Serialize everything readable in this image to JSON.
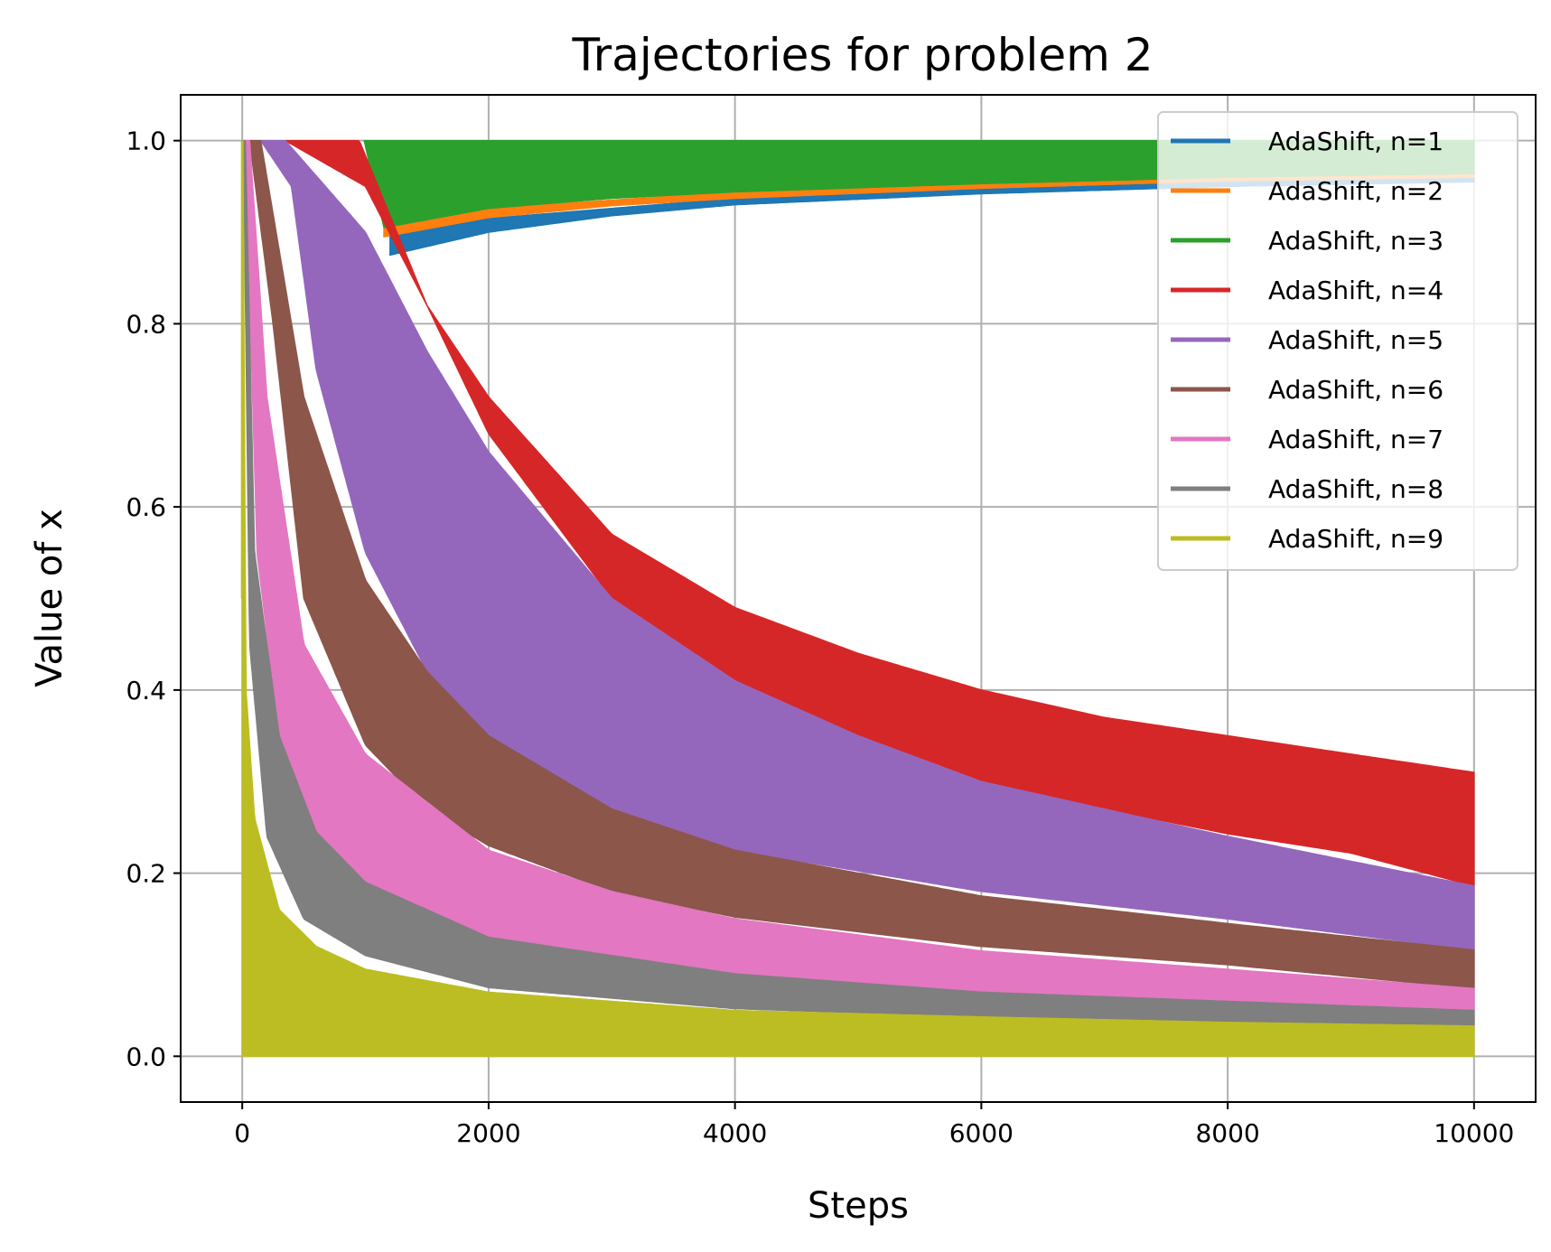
{
  "chart_data": {
    "type": "area",
    "title": "Trajectories for problem 2",
    "xlabel": "Steps",
    "ylabel": "Value of x",
    "xlim": [
      -500,
      10500
    ],
    "ylim": [
      -0.05,
      1.05
    ],
    "xticks": [
      0,
      2000,
      4000,
      6000,
      8000,
      10000
    ],
    "yticks": [
      0.0,
      0.2,
      0.4,
      0.6,
      0.8,
      1.0
    ],
    "xtick_labels": [
      "0",
      "2000",
      "4000",
      "6000",
      "8000",
      "10000"
    ],
    "ytick_labels": [
      "0.0",
      "0.2",
      "0.4",
      "0.6",
      "0.8",
      "1.0"
    ],
    "grid": true,
    "legend_position": "upper right",
    "series": [
      {
        "name": "AdaShift, n=1",
        "color": "#1f77b4",
        "start_step": 1200,
        "envelope_low": [
          [
            1200,
            0.875
          ],
          [
            2000,
            0.9
          ],
          [
            3000,
            0.918
          ],
          [
            4000,
            0.93
          ],
          [
            6000,
            0.942
          ],
          [
            8000,
            0.95
          ],
          [
            10000,
            0.955
          ]
        ],
        "envelope_high": [
          [
            1200,
            0.895
          ],
          [
            2000,
            0.915
          ],
          [
            4000,
            0.937
          ],
          [
            6000,
            0.948
          ],
          [
            8000,
            0.955
          ],
          [
            10000,
            0.96
          ]
        ]
      },
      {
        "name": "AdaShift, n=2",
        "color": "#ff7f0e",
        "start_step": 1150,
        "envelope_low": [
          [
            1150,
            0.895
          ],
          [
            2000,
            0.916
          ],
          [
            3000,
            0.929
          ],
          [
            4000,
            0.937
          ],
          [
            6000,
            0.948
          ],
          [
            8000,
            0.956
          ],
          [
            10000,
            0.96
          ]
        ],
        "envelope_high": [
          [
            1150,
            0.91
          ],
          [
            2000,
            0.926
          ],
          [
            4000,
            0.944
          ],
          [
            6000,
            0.953
          ],
          [
            8000,
            0.96
          ],
          [
            10000,
            0.964
          ]
        ]
      },
      {
        "name": "AdaShift, n=3",
        "color": "#2ca02c",
        "start_step": 990,
        "envelope_low": [
          [
            990,
            1.0
          ],
          [
            1150,
            0.905
          ],
          [
            2000,
            0.926
          ],
          [
            3000,
            0.937
          ],
          [
            4000,
            0.944
          ],
          [
            6000,
            0.953
          ],
          [
            8000,
            0.96
          ],
          [
            10000,
            0.964
          ]
        ],
        "envelope_high": [
          [
            990,
            1.0
          ],
          [
            10000,
            1.0
          ]
        ]
      },
      {
        "name": "AdaShift, n=4",
        "color": "#d62728",
        "start_step": 350,
        "envelope_low": [
          [
            350,
            1.0
          ],
          [
            1000,
            0.95
          ],
          [
            1500,
            0.82
          ],
          [
            2000,
            0.68
          ],
          [
            3000,
            0.5
          ],
          [
            4000,
            0.4
          ],
          [
            5000,
            0.34
          ],
          [
            6000,
            0.3
          ],
          [
            7000,
            0.27
          ],
          [
            8000,
            0.243
          ],
          [
            9000,
            0.222
          ],
          [
            10000,
            0.186
          ]
        ],
        "envelope_high": [
          [
            350,
            1.0
          ],
          [
            950,
            1.0
          ],
          [
            1500,
            0.82
          ],
          [
            2000,
            0.72
          ],
          [
            3000,
            0.57
          ],
          [
            4000,
            0.49
          ],
          [
            5000,
            0.44
          ],
          [
            6000,
            0.4
          ],
          [
            7000,
            0.37
          ],
          [
            8000,
            0.35
          ],
          [
            9000,
            0.33
          ],
          [
            10000,
            0.31
          ]
        ]
      },
      {
        "name": "AdaShift, n=5",
        "color": "#9467bd",
        "start_step": 150,
        "envelope_low": [
          [
            150,
            1.0
          ],
          [
            400,
            0.95
          ],
          [
            600,
            0.75
          ],
          [
            1000,
            0.55
          ],
          [
            1500,
            0.42
          ],
          [
            2000,
            0.35
          ],
          [
            3000,
            0.27
          ],
          [
            4000,
            0.225
          ],
          [
            6000,
            0.18
          ],
          [
            8000,
            0.15
          ],
          [
            10000,
            0.116
          ]
        ],
        "envelope_high": [
          [
            150,
            1.0
          ],
          [
            350,
            1.0
          ],
          [
            1000,
            0.9
          ],
          [
            1500,
            0.77
          ],
          [
            2000,
            0.66
          ],
          [
            3000,
            0.5
          ],
          [
            4000,
            0.41
          ],
          [
            5000,
            0.35
          ],
          [
            6000,
            0.3
          ],
          [
            7000,
            0.27
          ],
          [
            8000,
            0.24
          ],
          [
            10000,
            0.186
          ]
        ]
      },
      {
        "name": "AdaShift, n=6",
        "color": "#8c564b",
        "start_step": 60,
        "envelope_low": [
          [
            60,
            1.0
          ],
          [
            250,
            0.8
          ],
          [
            500,
            0.5
          ],
          [
            1000,
            0.34
          ],
          [
            1500,
            0.27
          ],
          [
            2000,
            0.23
          ],
          [
            3000,
            0.18
          ],
          [
            4000,
            0.152
          ],
          [
            6000,
            0.12
          ],
          [
            8000,
            0.1
          ],
          [
            10000,
            0.074
          ]
        ],
        "envelope_high": [
          [
            60,
            1.0
          ],
          [
            150,
            1.0
          ],
          [
            500,
            0.72
          ],
          [
            1000,
            0.52
          ],
          [
            1500,
            0.42
          ],
          [
            2000,
            0.35
          ],
          [
            3000,
            0.27
          ],
          [
            4000,
            0.225
          ],
          [
            6000,
            0.175
          ],
          [
            8000,
            0.145
          ],
          [
            10000,
            0.116
          ]
        ]
      },
      {
        "name": "AdaShift, n=7",
        "color": "#e377c2",
        "start_step": 25,
        "envelope_low": [
          [
            25,
            1.0
          ],
          [
            120,
            0.55
          ],
          [
            300,
            0.35
          ],
          [
            600,
            0.24
          ],
          [
            1000,
            0.19
          ],
          [
            2000,
            0.13
          ],
          [
            3000,
            0.105
          ],
          [
            4000,
            0.09
          ],
          [
            6000,
            0.07
          ],
          [
            8000,
            0.06
          ],
          [
            10000,
            0.05
          ]
        ],
        "envelope_high": [
          [
            25,
            1.0
          ],
          [
            60,
            1.0
          ],
          [
            200,
            0.72
          ],
          [
            500,
            0.45
          ],
          [
            1000,
            0.33
          ],
          [
            2000,
            0.225
          ],
          [
            3000,
            0.18
          ],
          [
            4000,
            0.15
          ],
          [
            6000,
            0.115
          ],
          [
            8000,
            0.095
          ],
          [
            10000,
            0.074
          ]
        ]
      },
      {
        "name": "AdaShift, n=8",
        "color": "#7f7f7f",
        "start_step": 10,
        "envelope_low": [
          [
            10,
            1.0
          ],
          [
            60,
            0.45
          ],
          [
            200,
            0.24
          ],
          [
            500,
            0.15
          ],
          [
            1000,
            0.11
          ],
          [
            2000,
            0.075
          ],
          [
            4000,
            0.052
          ],
          [
            6000,
            0.043
          ],
          [
            8000,
            0.038
          ],
          [
            10000,
            0.034
          ]
        ],
        "envelope_high": [
          [
            10,
            1.0
          ],
          [
            25,
            1.0
          ],
          [
            100,
            0.55
          ],
          [
            300,
            0.35
          ],
          [
            600,
            0.245
          ],
          [
            1000,
            0.19
          ],
          [
            2000,
            0.13
          ],
          [
            4000,
            0.09
          ],
          [
            6000,
            0.07
          ],
          [
            8000,
            0.06
          ],
          [
            10000,
            0.05
          ]
        ]
      },
      {
        "name": "AdaShift, n=9",
        "color": "#bcbd22",
        "start_step": 0,
        "start_value": 0.5,
        "envelope_low": [
          [
            0,
            0.0
          ],
          [
            10000,
            0.0
          ]
        ],
        "envelope_high": [
          [
            0,
            0.5
          ],
          [
            5,
            1.0
          ],
          [
            30,
            0.4
          ],
          [
            100,
            0.26
          ],
          [
            300,
            0.16
          ],
          [
            600,
            0.12
          ],
          [
            1000,
            0.095
          ],
          [
            2000,
            0.07
          ],
          [
            4000,
            0.05
          ],
          [
            6000,
            0.043
          ],
          [
            8000,
            0.037
          ],
          [
            10000,
            0.033
          ]
        ]
      }
    ]
  }
}
